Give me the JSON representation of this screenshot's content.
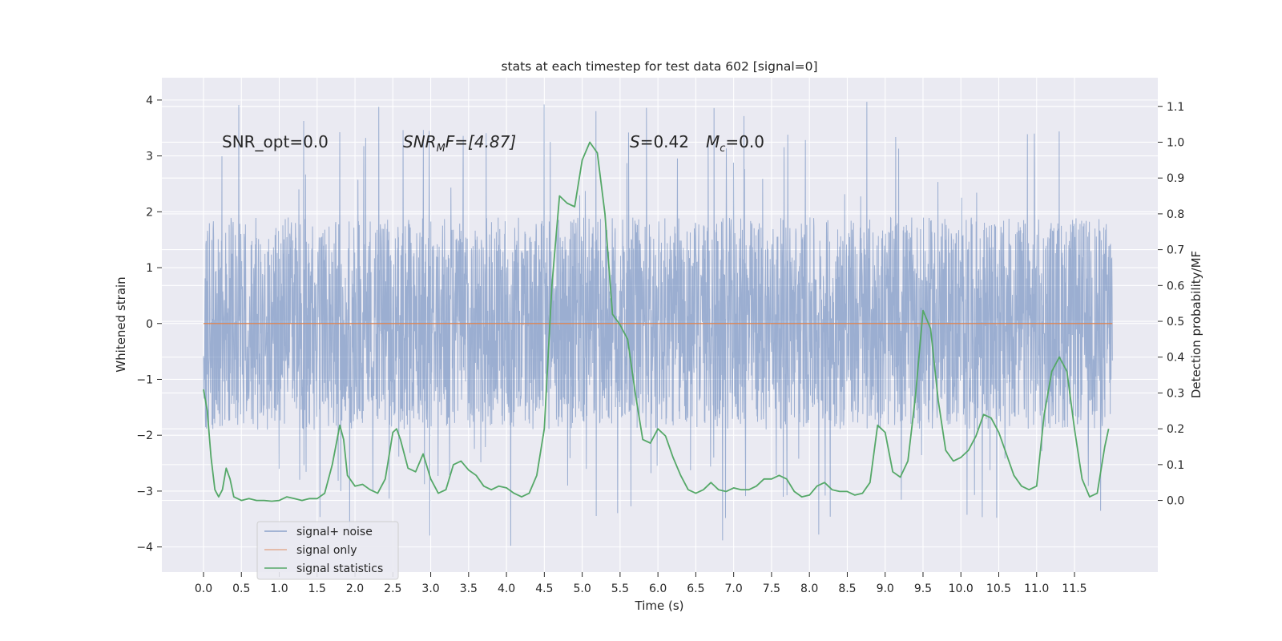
{
  "chart_data": {
    "type": "line",
    "title": "stats at each timestep for test data 602 [signal=0]",
    "xlabel": "Time (s)",
    "ylabel_left": "Whitened strain",
    "ylabel_right": "Detection probability/MF",
    "xlim": [
      -0.55,
      12.6
    ],
    "ylim_left": [
      -4.45,
      4.4
    ],
    "ylim_right": [
      -0.2,
      1.18
    ],
    "x_ticks": [
      "0.0",
      "0.5",
      "1.0",
      "1.5",
      "2.0",
      "2.5",
      "3.0",
      "3.5",
      "4.0",
      "4.5",
      "5.0",
      "5.5",
      "6.0",
      "6.5",
      "7.0",
      "7.5",
      "8.0",
      "8.5",
      "9.0",
      "9.5",
      "10.0",
      "10.5",
      "11.0",
      "11.5"
    ],
    "y_left_ticks": [
      "−4",
      "−3",
      "−2",
      "−1",
      "0",
      "1",
      "2",
      "3",
      "4"
    ],
    "y_right_ticks": [
      "0.0",
      "0.1",
      "0.2",
      "0.3",
      "0.4",
      "0.5",
      "0.6",
      "0.7",
      "0.8",
      "0.9",
      "1.0",
      "1.1"
    ],
    "grid": true,
    "annotations": {
      "snr_opt": "SNR_opt=0.0",
      "snr_mf_main": "SNR",
      "snr_mf_sub": "M",
      "snr_mf_rest": "F=[4.87]",
      "s_main": "S",
      "s_rest": "=0.42",
      "mc_main": "M",
      "mc_sub": "c",
      "mc_rest": "=0.0"
    },
    "legend": {
      "position": "lower-left",
      "entries": [
        "signal+ noise",
        "signal only",
        "signal statistics"
      ]
    },
    "colors": {
      "background": "#eaeaf2",
      "grid": "#ffffff",
      "signal_noise": "#4c72b0",
      "signal_only": "#dd8452",
      "signal_statistics": "#55a868"
    },
    "series": [
      {
        "name": "signal+ noise",
        "axis": "left",
        "t_range": [
          0.0,
          12.0
        ],
        "envelope_typical": [
          -1.9,
          1.9
        ],
        "envelope_extreme": [
          -4.05,
          4.0
        ]
      },
      {
        "name": "signal only",
        "axis": "left",
        "x": [
          0.0,
          12.0
        ],
        "y": [
          0.0,
          0.0
        ]
      },
      {
        "name": "signal statistics",
        "axis": "right",
        "x": [
          0.0,
          0.05,
          0.1,
          0.15,
          0.2,
          0.25,
          0.3,
          0.35,
          0.4,
          0.5,
          0.6,
          0.7,
          0.8,
          0.9,
          1.0,
          1.1,
          1.2,
          1.3,
          1.4,
          1.5,
          1.6,
          1.7,
          1.8,
          1.85,
          1.9,
          2.0,
          2.1,
          2.2,
          2.3,
          2.4,
          2.5,
          2.55,
          2.6,
          2.7,
          2.8,
          2.9,
          3.0,
          3.1,
          3.2,
          3.3,
          3.4,
          3.5,
          3.6,
          3.7,
          3.8,
          3.9,
          4.0,
          4.1,
          4.2,
          4.3,
          4.4,
          4.5,
          4.6,
          4.7,
          4.8,
          4.9,
          5.0,
          5.1,
          5.2,
          5.3,
          5.4,
          5.5,
          5.6,
          5.7,
          5.8,
          5.9,
          6.0,
          6.1,
          6.2,
          6.3,
          6.4,
          6.5,
          6.6,
          6.7,
          6.8,
          6.9,
          7.0,
          7.1,
          7.2,
          7.3,
          7.4,
          7.5,
          7.6,
          7.7,
          7.8,
          7.9,
          8.0,
          8.1,
          8.2,
          8.3,
          8.4,
          8.5,
          8.6,
          8.7,
          8.8,
          8.9,
          9.0,
          9.1,
          9.2,
          9.3,
          9.4,
          9.5,
          9.6,
          9.7,
          9.8,
          9.9,
          10.0,
          10.1,
          10.2,
          10.3,
          10.4,
          10.5,
          10.6,
          10.7,
          10.8,
          10.9,
          11.0,
          11.1,
          11.2,
          11.3,
          11.4,
          11.5,
          11.6,
          11.7,
          11.8,
          11.9,
          11.95
        ],
        "y": [
          0.31,
          0.25,
          0.12,
          0.03,
          0.01,
          0.03,
          0.09,
          0.06,
          0.01,
          0.0,
          0.005,
          0.0,
          0.0,
          -0.002,
          0.0,
          0.01,
          0.005,
          0.0,
          0.005,
          0.005,
          0.02,
          0.1,
          0.21,
          0.17,
          0.07,
          0.04,
          0.045,
          0.03,
          0.02,
          0.06,
          0.19,
          0.2,
          0.17,
          0.09,
          0.08,
          0.13,
          0.06,
          0.02,
          0.03,
          0.1,
          0.11,
          0.085,
          0.07,
          0.04,
          0.03,
          0.04,
          0.035,
          0.02,
          0.01,
          0.02,
          0.07,
          0.2,
          0.6,
          0.85,
          0.83,
          0.82,
          0.95,
          1.0,
          0.97,
          0.8,
          0.52,
          0.49,
          0.45,
          0.3,
          0.17,
          0.16,
          0.2,
          0.18,
          0.12,
          0.07,
          0.03,
          0.02,
          0.03,
          0.05,
          0.03,
          0.025,
          0.035,
          0.03,
          0.03,
          0.04,
          0.06,
          0.06,
          0.07,
          0.06,
          0.025,
          0.01,
          0.015,
          0.04,
          0.05,
          0.03,
          0.025,
          0.025,
          0.015,
          0.02,
          0.05,
          0.21,
          0.19,
          0.08,
          0.065,
          0.11,
          0.29,
          0.53,
          0.48,
          0.28,
          0.14,
          0.11,
          0.12,
          0.14,
          0.18,
          0.24,
          0.23,
          0.19,
          0.13,
          0.07,
          0.04,
          0.03,
          0.04,
          0.24,
          0.36,
          0.4,
          0.36,
          0.2,
          0.06,
          0.01,
          0.02,
          0.15,
          0.2
        ]
      }
    ]
  }
}
